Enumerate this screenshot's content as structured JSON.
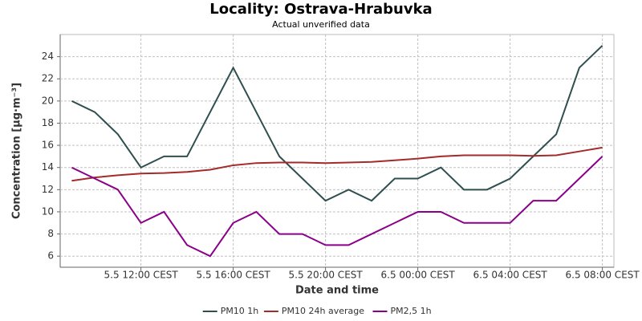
{
  "chart_data": {
    "type": "line",
    "title": "Locality: Ostrava-Hrabuvka",
    "subtitle": "Actual unverified data",
    "x_label": "Date and time",
    "y_label": "Concentration [µg·m⁻³]",
    "x": [
      "5.5 09:00 CEST",
      "5.5 10:00 CEST",
      "5.5 11:00 CEST",
      "5.5 12:00 CEST",
      "5.5 13:00 CEST",
      "5.5 14:00 CEST",
      "5.5 15:00 CEST",
      "5.5 16:00 CEST",
      "5.5 17:00 CEST",
      "5.5 18:00 CEST",
      "5.5 19:00 CEST",
      "5.5 20:00 CEST",
      "5.5 21:00 CEST",
      "5.5 22:00 CEST",
      "5.5 23:00 CEST",
      "6.5 00:00 CEST",
      "6.5 01:00 CEST",
      "6.5 02:00 CEST",
      "6.5 03:00 CEST",
      "6.5 04:00 CEST",
      "6.5 05:00 CEST",
      "6.5 06:00 CEST",
      "6.5 07:00 CEST",
      "6.5 08:00 CEST"
    ],
    "xticks": [
      "5.5 12:00 CEST",
      "5.5 16:00 CEST",
      "5.5 20:00 CEST",
      "6.5 00:00 CEST",
      "6.5 04:00 CEST",
      "6.5 08:00 CEST"
    ],
    "ylim": [
      5,
      26
    ],
    "yticks": [
      6,
      8,
      10,
      12,
      14,
      16,
      18,
      20,
      22,
      24
    ],
    "grid": true,
    "legend": "bottom",
    "series": [
      {
        "name": "PM10 1h",
        "color": "#2f4f4f",
        "values": [
          20,
          19,
          17,
          14,
          15,
          15,
          19,
          23,
          19,
          15,
          13,
          11,
          12,
          11,
          13,
          13,
          14,
          12,
          12,
          13,
          15,
          17,
          23,
          25
        ]
      },
      {
        "name": "PM10 24h average",
        "color": "#a52a2a",
        "values": [
          12.8,
          13.1,
          13.3,
          13.45,
          13.5,
          13.6,
          13.8,
          14.2,
          14.4,
          14.45,
          14.45,
          14.4,
          14.45,
          14.5,
          14.65,
          14.8,
          15.0,
          15.1,
          15.1,
          15.1,
          15.05,
          15.1,
          15.45,
          15.8
        ]
      },
      {
        "name": "PM2,5 1h",
        "color": "#8b008b",
        "values": [
          14,
          13,
          12,
          9,
          10,
          7,
          6,
          9,
          10,
          8,
          8,
          7,
          7,
          8,
          9,
          10,
          10,
          9,
          9,
          9,
          11,
          11,
          13,
          15
        ]
      }
    ]
  }
}
